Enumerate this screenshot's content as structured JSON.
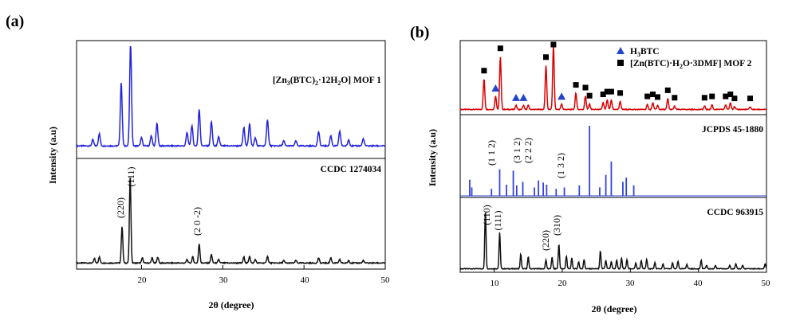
{
  "chart_data": [
    {
      "panel": "(a)",
      "type": "line",
      "xlabel": "2θ (degree)",
      "ylabel": "Intensity (a.u)",
      "xlim": [
        12,
        50
      ],
      "xticks": [
        20,
        30,
        40,
        50
      ],
      "grid": false,
      "series": [
        {
          "name": "[Zn3(BTC)2·12H2O] MOF 1",
          "color": "#2222dd",
          "peaks": [
            [
              14.0,
              0.06
            ],
            [
              14.8,
              0.12
            ],
            [
              17.5,
              0.62
            ],
            [
              18.65,
              1.0
            ],
            [
              20.0,
              0.08
            ],
            [
              21.2,
              0.1
            ],
            [
              21.9,
              0.22
            ],
            [
              25.6,
              0.13
            ],
            [
              26.2,
              0.2
            ],
            [
              27.1,
              0.36
            ],
            [
              28.6,
              0.24
            ],
            [
              29.5,
              0.09
            ],
            [
              32.6,
              0.18
            ],
            [
              33.3,
              0.22
            ],
            [
              34.0,
              0.08
            ],
            [
              35.5,
              0.26
            ],
            [
              37.5,
              0.05
            ],
            [
              39.0,
              0.05
            ],
            [
              41.8,
              0.14
            ],
            [
              43.3,
              0.1
            ],
            [
              44.4,
              0.14
            ],
            [
              45.5,
              0.06
            ],
            [
              47.3,
              0.07
            ]
          ]
        },
        {
          "name": "CCDC 1274034",
          "color": "#111111",
          "peaks": [
            [
              14.2,
              0.05
            ],
            [
              14.8,
              0.07
            ],
            [
              17.6,
              0.42
            ],
            [
              18.6,
              1.0
            ],
            [
              20.1,
              0.06
            ],
            [
              21.3,
              0.06
            ],
            [
              22.0,
              0.07
            ],
            [
              25.6,
              0.04
            ],
            [
              26.3,
              0.07
            ],
            [
              27.1,
              0.22
            ],
            [
              28.6,
              0.1
            ],
            [
              29.5,
              0.04
            ],
            [
              32.6,
              0.07
            ],
            [
              33.3,
              0.08
            ],
            [
              34.0,
              0.04
            ],
            [
              35.5,
              0.08
            ],
            [
              37.5,
              0.03
            ],
            [
              39.0,
              0.03
            ],
            [
              41.8,
              0.06
            ],
            [
              43.3,
              0.06
            ],
            [
              44.4,
              0.04
            ],
            [
              45.5,
              0.03
            ],
            [
              47.3,
              0.03
            ]
          ]
        }
      ],
      "annotations": [
        "(220)",
        "(111)",
        "(2 0 -2)"
      ]
    },
    {
      "panel": "(b)",
      "type": "line",
      "xlabel": "2θ (degree)",
      "ylabel": "Intensity (a.u)",
      "xlim": [
        5,
        50
      ],
      "xticks": [
        10,
        20,
        30,
        40,
        50
      ],
      "grid": false,
      "legend": [
        {
          "marker": "triangle",
          "color": "#2244cc",
          "label": "H3BTC"
        },
        {
          "marker": "square",
          "color": "#000000",
          "label": "[Zn(BTC)·H2O·3DMF] MOF 2"
        }
      ],
      "series": [
        {
          "name": "[Zn(BTC)·H2O·3DMF] MOF 2",
          "color": "#dd0000",
          "peaks": [
            [
              8.5,
              0.45
            ],
            [
              10.2,
              0.2
            ],
            [
              10.9,
              0.78
            ],
            [
              13.2,
              0.06
            ],
            [
              14.3,
              0.06
            ],
            [
              15.0,
              0.06
            ],
            [
              17.6,
              0.65
            ],
            [
              18.7,
              0.95
            ],
            [
              19.9,
              0.08
            ],
            [
              22.0,
              0.24
            ],
            [
              23.4,
              0.2
            ],
            [
              24.0,
              0.08
            ],
            [
              26.0,
              0.1
            ],
            [
              26.6,
              0.14
            ],
            [
              27.2,
              0.14
            ],
            [
              28.5,
              0.12
            ],
            [
              32.5,
              0.07
            ],
            [
              33.3,
              0.1
            ],
            [
              34.0,
              0.06
            ],
            [
              35.5,
              0.16
            ],
            [
              36.5,
              0.05
            ],
            [
              40.9,
              0.05
            ],
            [
              42.0,
              0.07
            ],
            [
              44.0,
              0.07
            ],
            [
              44.7,
              0.1
            ],
            [
              45.3,
              0.04
            ],
            [
              47.6,
              0.04
            ]
          ],
          "triangle_markers_x": [
            10.2,
            13.2,
            14.3,
            19.9
          ],
          "square_markers_x": [
            8.5,
            10.9,
            17.6,
            18.7,
            22.0,
            23.4,
            24.0,
            26.0,
            26.6,
            27.2,
            28.5,
            32.5,
            33.3,
            34.0,
            35.5,
            36.5,
            40.9,
            42.0,
            44.0,
            44.7,
            45.3,
            47.6
          ]
        },
        {
          "name": "JCPDS 45-1880",
          "type": "stick",
          "color": "#3344dd",
          "sticks": [
            [
              6.4,
              0.23
            ],
            [
              6.7,
              0.12
            ],
            [
              9.6,
              0.1
            ],
            [
              10.8,
              0.38
            ],
            [
              11.8,
              0.16
            ],
            [
              12.8,
              0.36
            ],
            [
              13.3,
              0.15
            ],
            [
              14.2,
              0.2
            ],
            [
              15.9,
              0.12
            ],
            [
              16.5,
              0.22
            ],
            [
              17.2,
              0.19
            ],
            [
              17.7,
              0.16
            ],
            [
              19.1,
              0.1
            ],
            [
              20.3,
              0.12
            ],
            [
              22.5,
              0.15
            ],
            [
              24.0,
              1.0
            ],
            [
              25.5,
              0.12
            ],
            [
              26.4,
              0.3
            ],
            [
              27.2,
              0.49
            ],
            [
              28.9,
              0.2
            ],
            [
              29.4,
              0.26
            ],
            [
              30.5,
              0.15
            ]
          ]
        },
        {
          "name": "CCDC 963915",
          "color": "#111111",
          "peaks": [
            [
              8.7,
              1.0
            ],
            [
              10.8,
              0.62
            ],
            [
              13.9,
              0.25
            ],
            [
              15.0,
              0.2
            ],
            [
              17.6,
              0.15
            ],
            [
              18.5,
              0.2
            ],
            [
              19.5,
              0.42
            ],
            [
              20.6,
              0.22
            ],
            [
              21.4,
              0.18
            ],
            [
              22.4,
              0.12
            ],
            [
              23.2,
              0.16
            ],
            [
              25.6,
              0.3
            ],
            [
              26.4,
              0.14
            ],
            [
              27.2,
              0.12
            ],
            [
              28.0,
              0.15
            ],
            [
              28.7,
              0.18
            ],
            [
              29.5,
              0.16
            ],
            [
              30.8,
              0.1
            ],
            [
              31.6,
              0.14
            ],
            [
              32.4,
              0.16
            ],
            [
              33.6,
              0.1
            ],
            [
              34.8,
              0.08
            ],
            [
              36.2,
              0.1
            ],
            [
              37.0,
              0.13
            ],
            [
              38.3,
              0.08
            ],
            [
              40.4,
              0.14
            ],
            [
              41.2,
              0.06
            ],
            [
              42.5,
              0.06
            ],
            [
              44.6,
              0.06
            ],
            [
              45.5,
              0.08
            ],
            [
              46.5,
              0.06
            ],
            [
              49.8,
              0.08
            ]
          ]
        }
      ],
      "annotations": [
        "(110)",
        "(111)",
        "(220)",
        "(310)",
        "(1 1 2)",
        "(3 1 2)",
        "(2 2 2)",
        "(1 3 2)"
      ]
    }
  ]
}
